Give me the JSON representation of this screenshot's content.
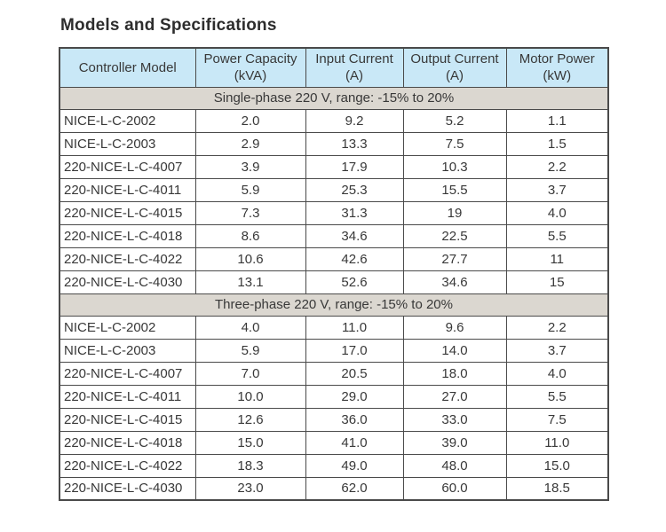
{
  "title": "Models and Specifications",
  "colors": {
    "header_bg": "#c9e8f7",
    "section_bg": "#dbd7d0",
    "border": "#4a4a4a"
  },
  "table": {
    "columns": [
      {
        "lines": [
          "Controller Model"
        ]
      },
      {
        "lines": [
          "Power Capacity",
          "(kVA)"
        ]
      },
      {
        "lines": [
          "Input Current",
          "(A)"
        ]
      },
      {
        "lines": [
          "Output Current",
          "(A)"
        ]
      },
      {
        "lines": [
          "Motor Power",
          "(kW)"
        ]
      }
    ],
    "sections": [
      {
        "label": "Single-phase 220 V, range: -15% to 20%",
        "rows": [
          [
            "NICE-L-C-2002",
            "2.0",
            "9.2",
            "5.2",
            "1.1"
          ],
          [
            "NICE-L-C-2003",
            "2.9",
            "13.3",
            "7.5",
            "1.5"
          ],
          [
            "220-NICE-L-C-4007",
            "3.9",
            "17.9",
            "10.3",
            "2.2"
          ],
          [
            "220-NICE-L-C-4011",
            "5.9",
            "25.3",
            "15.5",
            "3.7"
          ],
          [
            "220-NICE-L-C-4015",
            "7.3",
            "31.3",
            "19",
            "4.0"
          ],
          [
            "220-NICE-L-C-4018",
            "8.6",
            "34.6",
            "22.5",
            "5.5"
          ],
          [
            "220-NICE-L-C-4022",
            "10.6",
            "42.6",
            "27.7",
            "11"
          ],
          [
            "220-NICE-L-C-4030",
            "13.1",
            "52.6",
            "34.6",
            "15"
          ]
        ]
      },
      {
        "label": "Three-phase 220 V, range: -15% to 20%",
        "rows": [
          [
            "NICE-L-C-2002",
            "4.0",
            "11.0",
            "9.6",
            "2.2"
          ],
          [
            "NICE-L-C-2003",
            "5.9",
            "17.0",
            "14.0",
            "3.7"
          ],
          [
            "220-NICE-L-C-4007",
            "7.0",
            "20.5",
            "18.0",
            "4.0"
          ],
          [
            "220-NICE-L-C-4011",
            "10.0",
            "29.0",
            "27.0",
            "5.5"
          ],
          [
            "220-NICE-L-C-4015",
            "12.6",
            "36.0",
            "33.0",
            "7.5"
          ],
          [
            "220-NICE-L-C-4018",
            "15.0",
            "41.0",
            "39.0",
            "11.0"
          ],
          [
            "220-NICE-L-C-4022",
            "18.3",
            "49.0",
            "48.0",
            "15.0"
          ],
          [
            "220-NICE-L-C-4030",
            "23.0",
            "62.0",
            "60.0",
            "18.5"
          ]
        ]
      }
    ]
  }
}
